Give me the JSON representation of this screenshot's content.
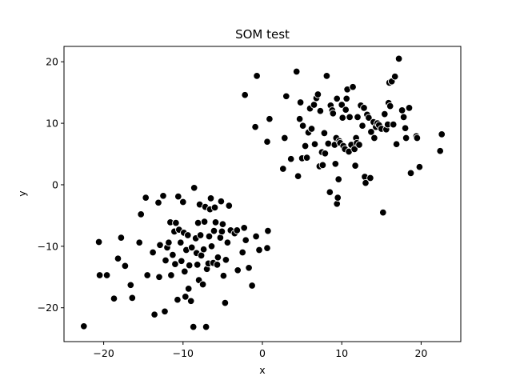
{
  "chart_data": {
    "type": "scatter",
    "title": "SOM test",
    "xlabel": "x",
    "ylabel": "y",
    "xlim": [
      -25,
      25
    ],
    "ylim": [
      -25.5,
      22.5
    ],
    "xticks": [
      -20,
      -10,
      0,
      10,
      20
    ],
    "yticks": [
      -20,
      -10,
      0,
      10,
      20
    ],
    "grid": false,
    "marker_color": "#000000",
    "marker_edge_color": "#ffffff",
    "series": [
      {
        "points": [
          [
            -22.5,
            -23.0
          ],
          [
            -20.6,
            -9.3
          ],
          [
            -20.5,
            -14.7
          ],
          [
            -19.6,
            -14.7
          ],
          [
            -18.7,
            -18.5
          ],
          [
            -18.2,
            -12.0
          ],
          [
            -17.8,
            -8.6
          ],
          [
            -17.3,
            -13.2
          ],
          [
            -16.6,
            -16.3
          ],
          [
            -16.4,
            -18.4
          ],
          [
            -15.5,
            -9.4
          ],
          [
            -15.3,
            -4.8
          ],
          [
            -14.7,
            -2.1
          ],
          [
            -14.5,
            -14.7
          ],
          [
            -13.8,
            -11.0
          ],
          [
            -13.6,
            -21.1
          ],
          [
            -13.1,
            -2.9
          ],
          [
            -13.0,
            -15.0
          ],
          [
            -12.9,
            -9.8
          ],
          [
            -12.5,
            -1.8
          ],
          [
            -12.3,
            -20.6
          ],
          [
            -12.2,
            -12.3
          ],
          [
            -12.0,
            -10.2
          ],
          [
            -11.8,
            -9.4
          ],
          [
            -11.6,
            -6.1
          ],
          [
            -11.5,
            -14.7
          ],
          [
            -11.3,
            -11.4
          ],
          [
            -11.1,
            -7.6
          ],
          [
            -11.0,
            -12.9
          ],
          [
            -10.9,
            -6.2
          ],
          [
            -10.7,
            -18.7
          ],
          [
            -10.6,
            -1.9
          ],
          [
            -10.5,
            -7.3
          ],
          [
            -10.3,
            -9.4
          ],
          [
            -10.2,
            -12.4
          ],
          [
            -10.0,
            -2.8
          ],
          [
            -9.9,
            -7.8
          ],
          [
            -9.8,
            -14.1
          ],
          [
            -9.7,
            -18.2
          ],
          [
            -9.6,
            -10.6
          ],
          [
            -9.4,
            -8.2
          ],
          [
            -9.3,
            -16.9
          ],
          [
            -9.2,
            -13.1
          ],
          [
            -9.0,
            -18.9
          ],
          [
            -8.9,
            -10.2
          ],
          [
            -8.7,
            -23.1
          ],
          [
            -8.6,
            -0.5
          ],
          [
            -8.4,
            -8.7
          ],
          [
            -8.3,
            -11.1
          ],
          [
            -8.2,
            -13.0
          ],
          [
            -8.1,
            -6.2
          ],
          [
            -8.0,
            -15.5
          ],
          [
            -7.9,
            -3.2
          ],
          [
            -7.8,
            -8.2
          ],
          [
            -7.7,
            -11.5
          ],
          [
            -7.5,
            -16.2
          ],
          [
            -7.4,
            -10.5
          ],
          [
            -7.3,
            -6.0
          ],
          [
            -7.2,
            -3.6
          ],
          [
            -7.1,
            -23.1
          ],
          [
            -7.0,
            -13.7
          ],
          [
            -6.8,
            -12.8
          ],
          [
            -6.7,
            -8.4
          ],
          [
            -6.6,
            -4.0
          ],
          [
            -6.5,
            -2.2
          ],
          [
            -6.4,
            -10.0
          ],
          [
            -6.2,
            -12.7
          ],
          [
            -6.1,
            -7.5
          ],
          [
            -6.0,
            -3.7
          ],
          [
            -5.9,
            -6.1
          ],
          [
            -5.7,
            -13.0
          ],
          [
            -5.6,
            -11.8
          ],
          [
            -5.3,
            -8.6
          ],
          [
            -5.2,
            -2.7
          ],
          [
            -5.1,
            -7.6
          ],
          [
            -5.0,
            -6.4
          ],
          [
            -4.9,
            -14.8
          ],
          [
            -4.7,
            -19.2
          ],
          [
            -4.6,
            -12.2
          ],
          [
            -4.4,
            -9.4
          ],
          [
            -4.2,
            -3.4
          ],
          [
            -4.0,
            -7.4
          ],
          [
            -3.5,
            -7.9
          ],
          [
            -3.2,
            -7.4
          ],
          [
            -3.1,
            -13.9
          ],
          [
            -2.5,
            -11.0
          ],
          [
            -2.3,
            -7.0
          ],
          [
            -2.1,
            -9.0
          ],
          [
            -1.7,
            -13.5
          ],
          [
            -1.3,
            -16.4
          ],
          [
            -0.8,
            -8.4
          ],
          [
            -0.4,
            -10.6
          ],
          [
            0.6,
            -10.3
          ],
          [
            0.7,
            -7.5
          ],
          [
            -2.2,
            14.6
          ],
          [
            -0.9,
            9.4
          ],
          [
            -0.7,
            17.7
          ],
          [
            0.6,
            7.0
          ],
          [
            0.9,
            10.7
          ],
          [
            2.6,
            2.6
          ],
          [
            2.8,
            7.6
          ],
          [
            3.0,
            14.4
          ],
          [
            3.6,
            4.2
          ],
          [
            4.3,
            18.4
          ],
          [
            4.5,
            1.4
          ],
          [
            4.7,
            10.7
          ],
          [
            4.8,
            13.4
          ],
          [
            5.0,
            4.3
          ],
          [
            5.1,
            9.6
          ],
          [
            5.4,
            6.3
          ],
          [
            5.6,
            4.4
          ],
          [
            5.8,
            8.5
          ],
          [
            6.0,
            12.4
          ],
          [
            6.2,
            9.1
          ],
          [
            6.5,
            13.0
          ],
          [
            6.6,
            6.6
          ],
          [
            6.8,
            14.1
          ],
          [
            7.0,
            14.7
          ],
          [
            7.2,
            3.0
          ],
          [
            7.3,
            12.0
          ],
          [
            7.5,
            5.3
          ],
          [
            7.6,
            3.2
          ],
          [
            7.8,
            8.4
          ],
          [
            7.9,
            5.1
          ],
          [
            8.1,
            17.7
          ],
          [
            8.3,
            6.7
          ],
          [
            8.5,
            -1.2
          ],
          [
            8.6,
            12.9
          ],
          [
            8.8,
            12.1
          ],
          [
            8.9,
            11.6
          ],
          [
            9.1,
            6.5
          ],
          [
            9.2,
            3.4
          ],
          [
            9.3,
            7.6
          ],
          [
            9.4,
            -3.1
          ],
          [
            9.4,
            14.0
          ],
          [
            9.5,
            -2.1
          ],
          [
            9.6,
            0.9
          ],
          [
            9.7,
            7.1
          ],
          [
            9.8,
            6.8
          ],
          [
            10.0,
            13.0
          ],
          [
            10.1,
            10.9
          ],
          [
            10.2,
            6.3
          ],
          [
            10.4,
            5.8
          ],
          [
            10.5,
            12.2
          ],
          [
            10.6,
            14.0
          ],
          [
            10.7,
            15.5
          ],
          [
            10.9,
            5.4
          ],
          [
            11.0,
            11.0
          ],
          [
            11.2,
            6.5
          ],
          [
            11.4,
            15.9
          ],
          [
            11.6,
            5.8
          ],
          [
            11.7,
            3.1
          ],
          [
            11.8,
            7.6
          ],
          [
            11.9,
            6.8
          ],
          [
            12.0,
            11.0
          ],
          [
            12.2,
            6.5
          ],
          [
            12.4,
            12.9
          ],
          [
            12.6,
            9.6
          ],
          [
            12.8,
            12.5
          ],
          [
            12.9,
            1.3
          ],
          [
            13.0,
            0.3
          ],
          [
            13.2,
            11.4
          ],
          [
            13.4,
            10.9
          ],
          [
            13.6,
            1.1
          ],
          [
            13.7,
            8.6
          ],
          [
            14.0,
            10.2
          ],
          [
            14.1,
            7.6
          ],
          [
            14.3,
            9.4
          ],
          [
            14.5,
            10.0
          ],
          [
            14.7,
            9.7
          ],
          [
            15.0,
            9.1
          ],
          [
            15.2,
            -4.5
          ],
          [
            15.4,
            11.5
          ],
          [
            15.6,
            9.0
          ],
          [
            15.8,
            9.8
          ],
          [
            15.9,
            13.3
          ],
          [
            16.0,
            16.6
          ],
          [
            16.1,
            12.8
          ],
          [
            16.3,
            16.8
          ],
          [
            16.5,
            9.8
          ],
          [
            16.7,
            17.6
          ],
          [
            16.9,
            6.6
          ],
          [
            17.2,
            20.5
          ],
          [
            17.6,
            12.1
          ],
          [
            17.8,
            11.0
          ],
          [
            18.0,
            9.2
          ],
          [
            18.1,
            7.6
          ],
          [
            18.5,
            12.5
          ],
          [
            18.7,
            1.9
          ],
          [
            19.4,
            7.9
          ],
          [
            19.5,
            7.6
          ],
          [
            19.8,
            2.9
          ],
          [
            22.4,
            5.5
          ],
          [
            22.6,
            8.2
          ]
        ]
      }
    ]
  }
}
